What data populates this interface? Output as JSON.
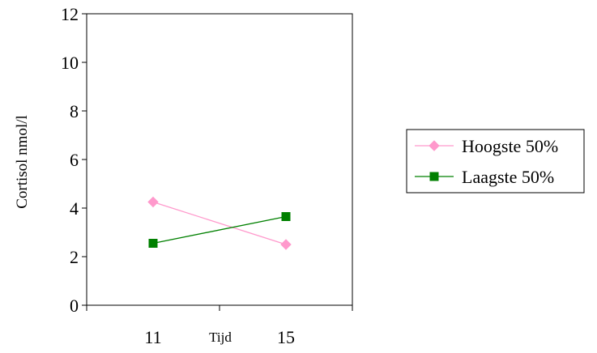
{
  "chart_data": {
    "type": "line",
    "title": "",
    "xlabel": "Tijd",
    "ylabel": "Cortisol nmol/l",
    "categories": [
      "11",
      "15"
    ],
    "ylim": [
      0,
      12
    ],
    "yticks": [
      "0",
      "2",
      "4",
      "6",
      "8",
      "10",
      "12"
    ],
    "grid": false,
    "legend_position": "right",
    "series": [
      {
        "name": "Hoogste 50%",
        "values": [
          4.25,
          2.5
        ],
        "color": "#ff99cc",
        "marker": "diamond"
      },
      {
        "name": "Laagste 50%",
        "values": [
          2.55,
          3.65
        ],
        "color": "#008000",
        "marker": "square"
      }
    ]
  }
}
